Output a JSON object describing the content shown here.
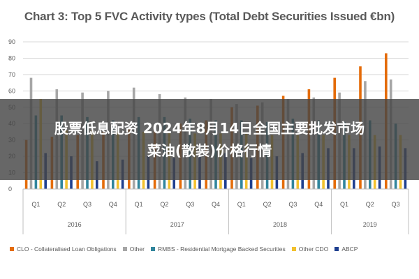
{
  "chart_data": {
    "type": "bar",
    "title": "Chart 3: Top 5 FVC Activity types (Total Debt Securities Issued €bn)",
    "xlabel": "",
    "ylabel": "",
    "ylim": [
      0,
      90
    ],
    "yticks": [
      0,
      10,
      20,
      30,
      40,
      50,
      60,
      70,
      80,
      90
    ],
    "grid": true,
    "legend_position": "bottom",
    "groups": [
      {
        "label": "2016",
        "categories": [
          "Q1",
          "Q2",
          "Q3",
          "Q4"
        ]
      },
      {
        "label": "2017",
        "categories": [
          "Q1",
          "Q2",
          "Q3",
          "Q4"
        ]
      },
      {
        "label": "2018",
        "categories": [
          "Q1",
          "Q2",
          "Q3",
          "Q4"
        ]
      },
      {
        "label": "2019",
        "categories": [
          "Q1",
          "Q2",
          "Q3"
        ]
      }
    ],
    "categories": [
      "Q1",
      "Q2",
      "Q3",
      "Q4",
      "Q1",
      "Q2",
      "Q3",
      "Q4",
      "Q1",
      "Q2",
      "Q3",
      "Q4",
      "Q1",
      "Q2",
      "Q3"
    ],
    "series": [
      {
        "name": "CLO - Collateralised Loan Obligations",
        "color": "#E46C0A",
        "values": [
          30,
          32,
          33,
          35,
          37,
          38,
          40,
          42,
          50,
          51,
          57,
          61,
          68,
          75,
          83
        ]
      },
      {
        "name": "Other",
        "color": "#A6A6A6",
        "values": [
          68,
          61,
          59,
          60,
          62,
          58,
          56,
          55,
          52,
          53,
          55,
          56,
          59,
          66,
          67
        ]
      },
      {
        "name": "RMBS - Residential Mortgage Backed Securities",
        "color": "#31859C",
        "values": [
          45,
          45,
          44,
          42,
          44,
          44,
          43,
          42,
          42,
          41,
          43,
          42,
          41,
          42,
          40
        ]
      },
      {
        "name": "Other CDO",
        "color": "#F2C12E",
        "values": [
          55,
          36,
          36,
          35,
          35,
          35,
          34,
          34,
          34,
          33,
          33,
          33,
          33,
          33,
          33
        ]
      },
      {
        "name": "ABCP",
        "color": "#1F3F8F",
        "values": [
          22,
          20,
          17,
          18,
          20,
          19,
          20,
          22,
          19,
          20,
          22,
          25,
          25,
          26,
          25
        ]
      }
    ]
  },
  "overlay": {
    "line1": "股票低息配资 2024年8月14日全国主要批发市场",
    "line2": "菜油(散装)价格行情"
  }
}
